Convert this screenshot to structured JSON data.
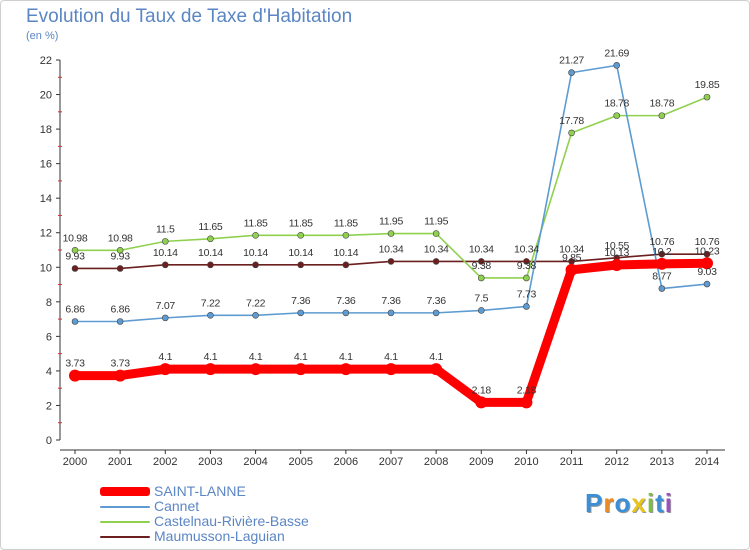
{
  "chart_data": {
    "type": "line",
    "title": "Evolution du Taux de Taxe d'Habitation",
    "subtitle": "(en %)",
    "xlabel": "",
    "ylabel": "",
    "categories": [
      "2000",
      "2001",
      "2002",
      "2003",
      "2004",
      "2005",
      "2006",
      "2007",
      "2008",
      "2009",
      "2010",
      "2011",
      "2012",
      "2013",
      "2014"
    ],
    "ylim": [
      0,
      22
    ],
    "yticks": [
      0,
      2,
      4,
      6,
      8,
      10,
      12,
      14,
      16,
      18,
      20,
      22
    ],
    "grid": false,
    "legend_position": "bottom-left",
    "series": [
      {
        "name": "SAINT-LANNE",
        "color": "#ff0000",
        "emphasis": true,
        "values": [
          3.73,
          3.73,
          4.1,
          4.1,
          4.1,
          4.1,
          4.1,
          4.1,
          4.1,
          2.18,
          2.18,
          9.85,
          10.13,
          10.2,
          10.23
        ],
        "labels": [
          "3.73",
          "3.73",
          "4.1",
          "4.1",
          "4.1",
          "4.1",
          "4.1",
          "4.1",
          "4.1",
          "2.18",
          "2.18",
          "9.85",
          "10.13",
          "10.2",
          "10.23"
        ]
      },
      {
        "name": "Cannet",
        "color": "#5d9bd1",
        "values": [
          6.86,
          6.86,
          7.07,
          7.22,
          7.22,
          7.36,
          7.36,
          7.36,
          7.36,
          7.5,
          7.73,
          21.27,
          21.69,
          8.77,
          9.03
        ],
        "labels": [
          "6.86",
          "6.86",
          "7.07",
          "7.22",
          "7.22",
          "7.36",
          "7.36",
          "7.36",
          "7.36",
          "7.5",
          "7.73",
          "21.27",
          "21.69",
          "8.77",
          "9.03"
        ]
      },
      {
        "name": "Castelnau-Rivière-Basse",
        "color": "#8fd14f",
        "values": [
          10.98,
          10.98,
          11.5,
          11.65,
          11.85,
          11.85,
          11.85,
          11.95,
          11.95,
          9.38,
          9.38,
          17.78,
          18.78,
          18.78,
          19.85
        ],
        "labels": [
          "10.98",
          "10.98",
          "11.5",
          "11.65",
          "11.85",
          "11.85",
          "11.85",
          "11.95",
          "11.95",
          "9.38",
          "9.38",
          "17.78",
          "18.78",
          "18.78",
          "19.85"
        ]
      },
      {
        "name": "Maumusson-Laguian",
        "color": "#6b1f1f",
        "values": [
          9.93,
          9.93,
          10.14,
          10.14,
          10.14,
          10.14,
          10.14,
          10.34,
          10.34,
          10.34,
          10.34,
          10.34,
          10.55,
          10.76,
          10.76
        ],
        "labels": [
          "9.93",
          "9.93",
          "10.14",
          "10.14",
          "10.14",
          "10.14",
          "10.14",
          "10.34",
          "10.34",
          "10.34",
          "10.34",
          "10.34",
          "10.55",
          "10.76",
          "10.76"
        ]
      }
    ]
  },
  "brand": {
    "letters": [
      "P",
      "r",
      "o",
      "x",
      "i",
      "t",
      "i"
    ],
    "colors": [
      "#3a8fd6",
      "#f08a1c",
      "#3a8fd6",
      "#e8c51a",
      "#7cbf3a",
      "#3a8fd6",
      "#9c4fc4"
    ]
  }
}
